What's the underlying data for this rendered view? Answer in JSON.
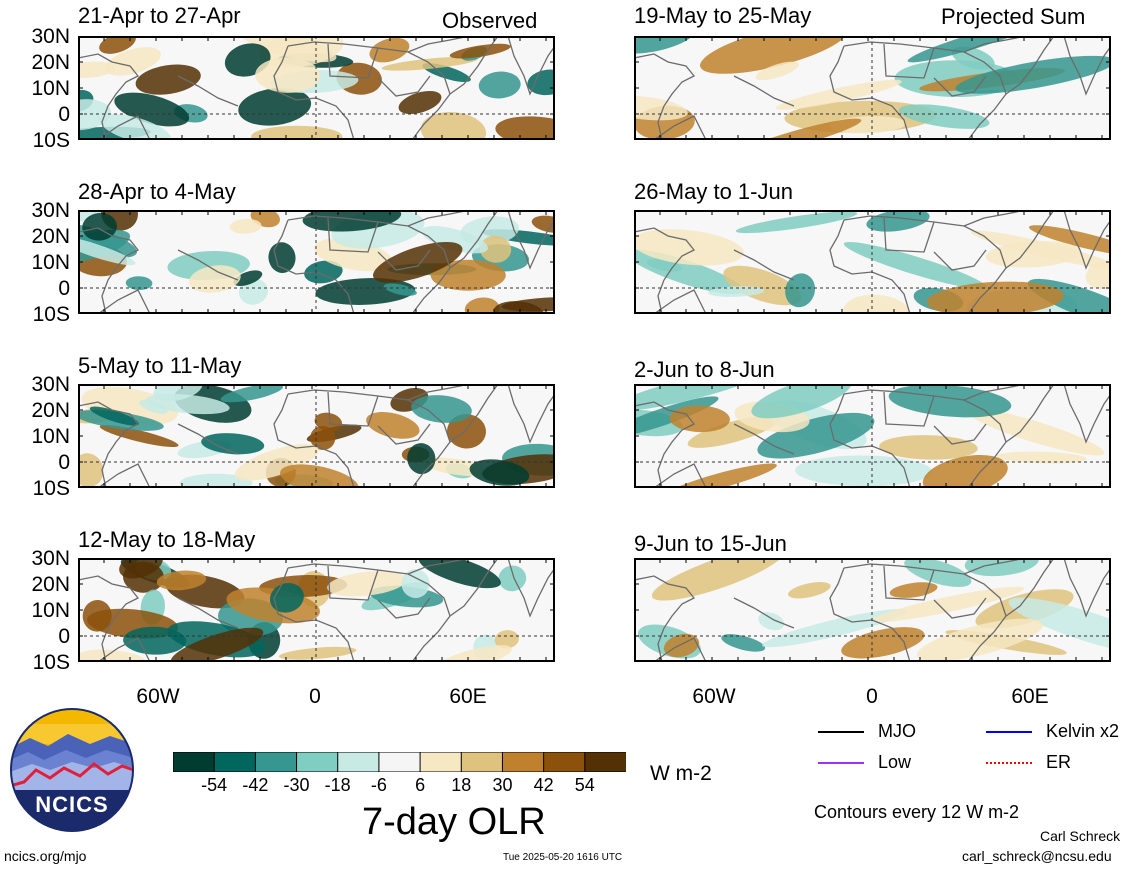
{
  "header": {
    "observed_label": "Observed",
    "projected_label": "Projected Sum"
  },
  "axes": {
    "lat_labels": [
      "30N",
      "20N",
      "10N",
      "0",
      "10S"
    ],
    "lon_labels": [
      "60W",
      "0",
      "60E"
    ]
  },
  "panels": {
    "observed": [
      {
        "title": "21-Apr to 27-Apr"
      },
      {
        "title": "28-Apr to 4-May"
      },
      {
        "title": "5-May to 11-May"
      },
      {
        "title": "12-May to 18-May"
      }
    ],
    "projected": [
      {
        "title": "19-May to 25-May"
      },
      {
        "title": "26-May to 1-Jun"
      },
      {
        "title": "2-Jun to 8-Jun"
      },
      {
        "title": "9-Jun to 15-Jun"
      }
    ]
  },
  "colorbar": {
    "tick_labels": [
      "-54",
      "-42",
      "-30",
      "-18",
      "-6",
      "6",
      "18",
      "30",
      "42",
      "54"
    ],
    "colors": [
      "#003c30",
      "#01665e",
      "#35978f",
      "#80cdc1",
      "#c7eae5",
      "#f5f5f5",
      "#f6e8c3",
      "#dfc27d",
      "#bf812d",
      "#8c510a",
      "#543005"
    ],
    "units": "W m-2",
    "title": "7-day OLR"
  },
  "legend": {
    "items": [
      {
        "label": "MJO",
        "color": "#000000",
        "style": "solid"
      },
      {
        "label": "Kelvin x2",
        "color": "#0000ff",
        "style": "solid"
      },
      {
        "label": "Low",
        "color": "#9b30ff",
        "style": "solid"
      },
      {
        "label": "ER",
        "color": "#ff0000",
        "style": "dotted"
      }
    ],
    "contour_note": "Contours every 12 W m-2"
  },
  "footer": {
    "logo_text": "NCICS",
    "url": "ncics.org/mjo",
    "timestamp": "Tue 2025-05-20 1616 UTC",
    "author": "Carl Schreck",
    "email": "carl_schreck@ncsu.edu"
  }
}
